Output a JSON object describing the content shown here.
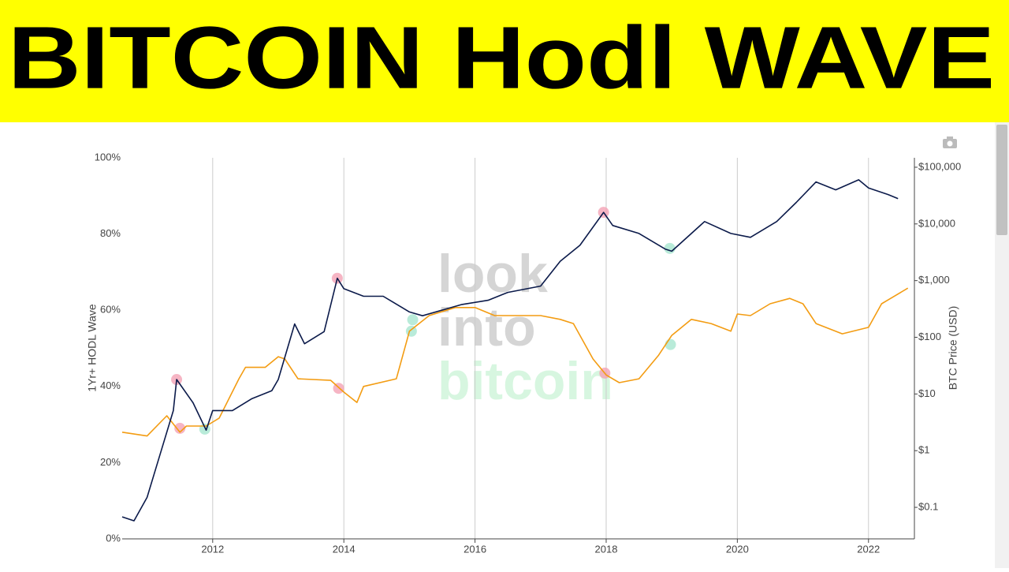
{
  "title": "BITCOIN Hodl WAVE",
  "chart_data": {
    "type": "line",
    "y_label": "1Yr+ HODL Wave",
    "y2_label": "BTC Price (USD)",
    "watermark": [
      "look",
      "into",
      "bitcoin"
    ],
    "xlim": [
      2010.62,
      2022.7
    ],
    "xticks": [
      2012,
      2014,
      2016,
      2018,
      2020,
      2022
    ],
    "ylim": [
      0,
      100
    ],
    "yticks": [
      {
        "value": 0,
        "label": "0%"
      },
      {
        "value": 20,
        "label": "20%"
      },
      {
        "value": 40,
        "label": "40%"
      },
      {
        "value": 60,
        "label": "60%"
      },
      {
        "value": 80,
        "label": "80%"
      },
      {
        "value": 100,
        "label": "100%"
      }
    ],
    "y2_log": true,
    "y2lim": [
      0.0278,
      146780
    ],
    "y2ticks": [
      {
        "value": 0.1,
        "label": "$0.1"
      },
      {
        "value": 1,
        "label": "$1"
      },
      {
        "value": 10,
        "label": "$10"
      },
      {
        "value": 100,
        "label": "$100"
      },
      {
        "value": 1000,
        "label": "$1,000"
      },
      {
        "value": 10000,
        "label": "$10,000"
      },
      {
        "value": 100000,
        "label": "$100,000"
      }
    ],
    "grid": "x",
    "series": [
      {
        "color": "#f39c12",
        "axis": "y",
        "x": [
          2010.62,
          2011.0,
          2011.3,
          2011.5,
          2011.6,
          2011.9,
          2012.1,
          2012.4,
          2012.5,
          2012.8,
          2013.0,
          2013.1,
          2013.3,
          2013.8,
          2014.0,
          2014.2,
          2014.3,
          2014.8,
          2015.0,
          2015.3,
          2015.7,
          2016.0,
          2016.3,
          2016.7,
          2017.0,
          2017.3,
          2017.5,
          2017.8,
          2018.0,
          2018.2,
          2018.5,
          2018.8,
          2019.0,
          2019.3,
          2019.6,
          2019.9,
          2020.0,
          2020.2,
          2020.5,
          2020.8,
          2021.0,
          2021.2,
          2021.6,
          2022.0,
          2022.2,
          2022.6
        ],
        "values": [
          28,
          27,
          32.3,
          28,
          29.6,
          29.6,
          31.7,
          42,
          45,
          45,
          47.8,
          47.2,
          42,
          41.6,
          38.5,
          35.8,
          40,
          42,
          54.5,
          58.6,
          60.7,
          60.7,
          58.6,
          58.6,
          58.6,
          57.6,
          56.5,
          47.2,
          43,
          41,
          42,
          48.2,
          53.4,
          57.6,
          56.5,
          54.5,
          59,
          58.6,
          61.7,
          63.1,
          61.7,
          56.5,
          53.8,
          55.5,
          61.7,
          65.8
        ]
      },
      {
        "color": "#0b1a4a",
        "axis": "y2",
        "x": [
          2010.62,
          2010.8,
          2011.0,
          2011.2,
          2011.4,
          2011.45,
          2011.7,
          2011.9,
          2012.0,
          2012.3,
          2012.6,
          2012.9,
          2013.0,
          2013.25,
          2013.4,
          2013.7,
          2013.9,
          2014.0,
          2014.3,
          2014.6,
          2015.0,
          2015.2,
          2015.8,
          2016.2,
          2016.5,
          2017.0,
          2017.3,
          2017.6,
          2017.96,
          2018.1,
          2018.5,
          2018.9,
          2019.0,
          2019.5,
          2019.9,
          2020.2,
          2020.6,
          2020.9,
          2021.2,
          2021.5,
          2021.85,
          2022.0,
          2022.3,
          2022.45
        ],
        "values": [
          0.068,
          0.058,
          0.15,
          0.88,
          5.1,
          18,
          7,
          2.3,
          5.1,
          5.1,
          8.3,
          11.4,
          18,
          172,
          77,
          126,
          1100,
          720,
          530,
          530,
          280,
          240,
          380,
          450,
          620,
          800,
          2200,
          4200,
          16000,
          9400,
          6800,
          3600,
          3300,
          11000,
          6800,
          5800,
          11000,
          24000,
          55000,
          40000,
          60000,
          43000,
          33000,
          28000
        ]
      },
      {
        "color": "#f4a3b5",
        "axis": "y2",
        "marker": true,
        "x": [
          2011.45,
          2013.9,
          2017.96
        ],
        "values": [
          18,
          1100,
          16000
        ]
      },
      {
        "color": "#f4a3b5",
        "axis": "y",
        "marker": true,
        "x": [
          2011.5,
          2013.92,
          2017.98
        ],
        "values": [
          29,
          39.5,
          43.5
        ]
      },
      {
        "color": "#a8e6cf",
        "axis": "y2",
        "marker": true,
        "x": [
          2011.88,
          2018.97
        ],
        "values": [
          2.4,
          3700
        ]
      },
      {
        "color": "#a8e6cf",
        "axis": "y",
        "marker": true,
        "x": [
          2015.05,
          2015.03,
          2018.98
        ],
        "values": [
          57.5,
          54.5,
          51
        ]
      }
    ]
  }
}
